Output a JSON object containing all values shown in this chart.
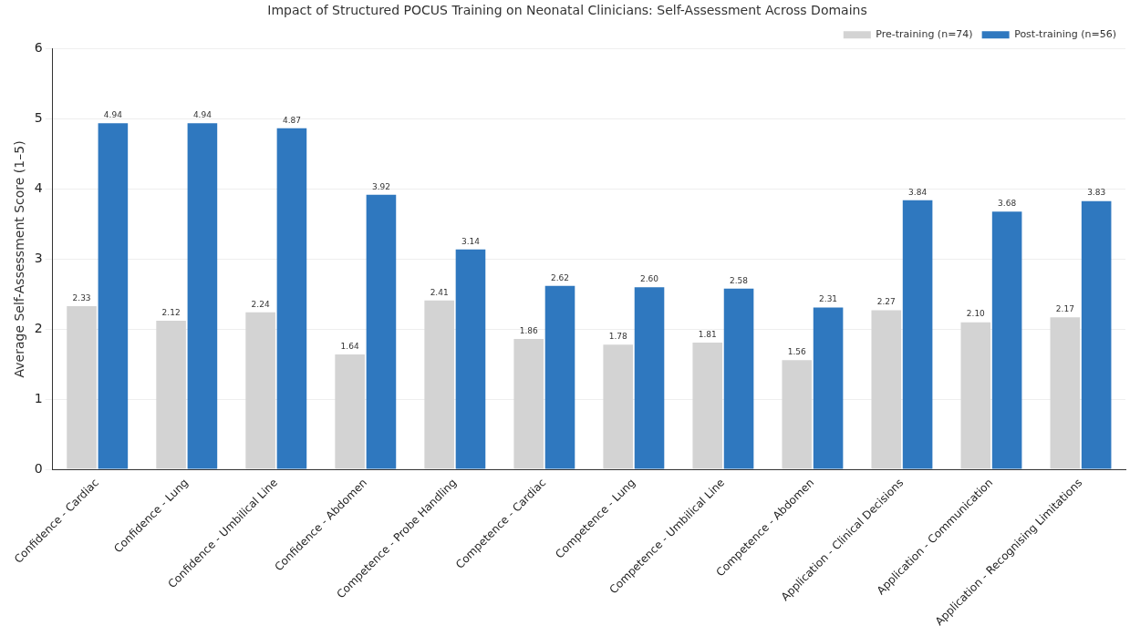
{
  "chart_data": {
    "type": "bar",
    "title": "Impact of Structured POCUS Training on Neonatal Clinicians: Self-Assessment Across Domains",
    "ylabel": "Average Self-Assessment Score (1–5)",
    "categories": [
      "Confidence - Cardiac",
      "Confidence - Lung",
      "Confidence - Umbilical Line",
      "Confidence - Abdomen",
      "Competence - Probe Handling",
      "Competence - Cardiac",
      "Competence - Lung",
      "Competence - Umbilical Line",
      "Competence - Abdomen",
      "Application - Clinical Decisions",
      "Application - Communication",
      "Application - Recognising Limitations"
    ],
    "series": [
      {
        "name": "Pre-training (n=74)",
        "color": "#d3d3d3",
        "values": [
          2.33,
          2.12,
          2.24,
          1.64,
          2.41,
          1.86,
          1.78,
          1.81,
          1.56,
          2.27,
          2.1,
          2.17
        ],
        "value_labels": [
          "2.33",
          "2.12",
          "2.24",
          "1.64",
          "2.41",
          "1.86",
          "1.78",
          "1.81",
          "1.56",
          "2.27",
          "2.10",
          "2.17"
        ]
      },
      {
        "name": "Post-training (n=56)",
        "color": "#2f78bf",
        "values": [
          4.94,
          4.94,
          4.87,
          3.92,
          3.14,
          2.62,
          2.6,
          2.58,
          2.31,
          3.84,
          3.68,
          3.83
        ],
        "value_labels": [
          "4.94",
          "4.94",
          "4.87",
          "3.92",
          "3.14",
          "2.62",
          "2.60",
          "2.58",
          "2.31",
          "3.84",
          "3.68",
          "3.83"
        ]
      }
    ],
    "ylim": [
      0,
      6
    ],
    "yticks": [
      0,
      1,
      2,
      3,
      4,
      5,
      6
    ],
    "grid": "y",
    "legend": "top right"
  }
}
